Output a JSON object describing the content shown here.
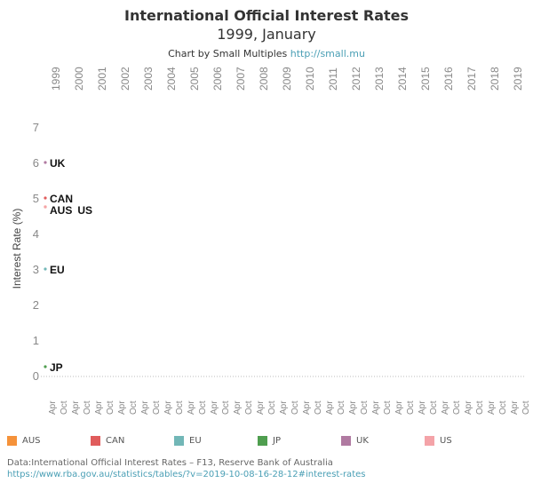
{
  "title": "International Official Interest Rates",
  "subtitle": "1999, January",
  "credit": {
    "text": "Chart by Small Multiples ",
    "link": "http://small.mu"
  },
  "source": {
    "text": "Data:International Official Interest Rates – F13, Reserve Bank of Australia",
    "link": "https://www.rba.gov.au/statistics/tables/?v=2019-10-08-16-28-12#interest-rates"
  },
  "chart_data": {
    "type": "line",
    "title": "International Official Interest Rates",
    "ylabel": "Interest Rate (%)",
    "ylim": [
      0,
      7
    ],
    "yticks": [
      0,
      1,
      2,
      3,
      4,
      5,
      6,
      7
    ],
    "years": [
      "1999",
      "2000",
      "2001",
      "2002",
      "2003",
      "2004",
      "2005",
      "2006",
      "2007",
      "2008",
      "2009",
      "2010",
      "2011",
      "2012",
      "2013",
      "2014",
      "2015",
      "2016",
      "2017",
      "2018",
      "2019"
    ],
    "minor_ticks": [
      "Apr",
      "Oct"
    ],
    "series": [
      {
        "name": "AUS",
        "color": "#f5923a",
        "values": [
          4.75
        ]
      },
      {
        "name": "CAN",
        "color": "#e05c5c",
        "values": [
          5.0
        ]
      },
      {
        "name": "EU",
        "color": "#72b7b7",
        "values": [
          3.0
        ]
      },
      {
        "name": "JP",
        "color": "#4f9e4f",
        "values": [
          0.25
        ]
      },
      {
        "name": "UK",
        "color": "#b07aa1",
        "values": [
          6.0
        ]
      },
      {
        "name": "US",
        "color": "#f4a3a8",
        "values": [
          4.75
        ]
      }
    ],
    "point_labels": [
      {
        "text": "UK",
        "value": 6.0
      },
      {
        "text": "CAN",
        "value": 5.0
      },
      {
        "text": "AUS",
        "value": 4.75
      },
      {
        "text": "US",
        "value": 4.75
      },
      {
        "text": "EU",
        "value": 3.0
      },
      {
        "text": "JP",
        "value": 0.25
      }
    ]
  }
}
